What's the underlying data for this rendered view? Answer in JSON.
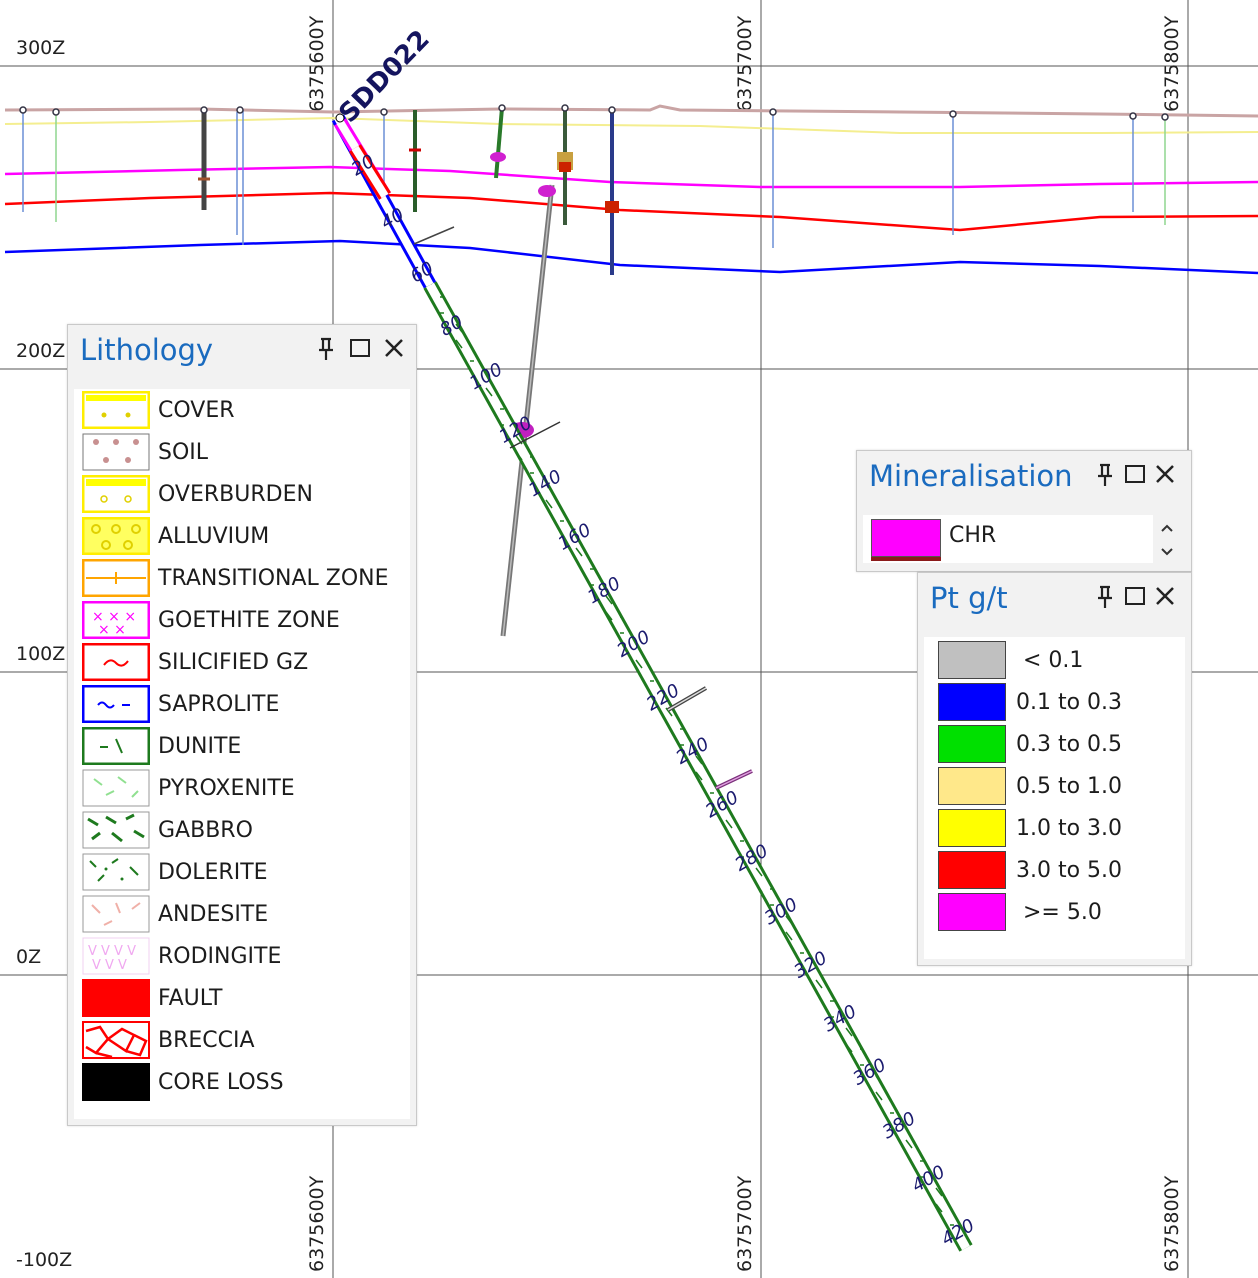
{
  "section": {
    "hole_id": "SDD022",
    "elevations": [
      "300Z",
      "200Z",
      "100Z",
      "0Z",
      "-100Z"
    ],
    "northings": [
      "6375600Y",
      "6375700Y",
      "6375800Y"
    ],
    "depth_labels": [
      "20",
      "40",
      "60",
      "80",
      "100",
      "120",
      "140",
      "160",
      "180",
      "200",
      "220",
      "240",
      "260",
      "280",
      "300",
      "320",
      "340",
      "360",
      "380",
      "400",
      "420"
    ]
  },
  "lithology": {
    "title": "Lithology",
    "items": [
      {
        "label": "COVER"
      },
      {
        "label": "SOIL"
      },
      {
        "label": "OVERBURDEN"
      },
      {
        "label": "ALLUVIUM"
      },
      {
        "label": "TRANSITIONAL ZONE"
      },
      {
        "label": "GOETHITE ZONE"
      },
      {
        "label": "SILICIFIED GZ"
      },
      {
        "label": "SAPROLITE"
      },
      {
        "label": "DUNITE"
      },
      {
        "label": "PYROXENITE"
      },
      {
        "label": "GABBRO"
      },
      {
        "label": "DOLERITE"
      },
      {
        "label": "ANDESITE"
      },
      {
        "label": "RODINGITE"
      },
      {
        "label": "FAULT"
      },
      {
        "label": "BRECCIA"
      },
      {
        "label": "CORE LOSS"
      }
    ]
  },
  "mineralisation": {
    "title": "Mineralisation",
    "items": [
      {
        "label": "CHR",
        "color": "#ff00ff"
      }
    ]
  },
  "pt": {
    "title": "Pt g/t",
    "items": [
      {
        "label": " < 0.1",
        "color": "#c0c0c0"
      },
      {
        "label": "0.1 to 0.3",
        "color": "#0000ff"
      },
      {
        "label": "0.3 to 0.5",
        "color": "#00e000"
      },
      {
        "label": "0.5 to 1.0",
        "color": "#ffe88a"
      },
      {
        "label": "1.0 to 3.0",
        "color": "#ffff00"
      },
      {
        "label": "3.0 to 5.0",
        "color": "#ff0000"
      },
      {
        "label": " >= 5.0",
        "color": "#ff00ff"
      }
    ]
  },
  "colors": {
    "panel_title": "#1a6bbf",
    "depth_label": "#1a1a6e",
    "dunite": "#1e7a1e",
    "goethite_line": "#ff00ff",
    "silicified_line": "#ff0000",
    "saprolite_line": "#0000ff"
  }
}
